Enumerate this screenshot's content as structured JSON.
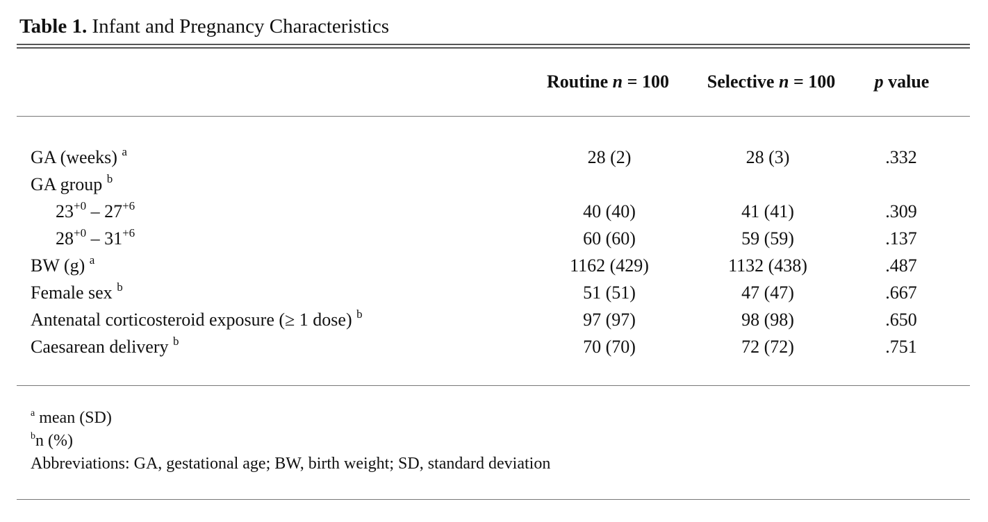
{
  "caption": {
    "label": "Table 1.",
    "title": "Infant and Pregnancy Characteristics"
  },
  "columns": {
    "routine": {
      "name": "Routine",
      "n_symbol": "n",
      "n_value": "= 100"
    },
    "selective": {
      "name": "Selective",
      "n_symbol": "n",
      "n_value": "= 100"
    },
    "p": {
      "symbol": "p",
      "text": "value"
    }
  },
  "rows": [
    {
      "label": "GA (weeks)",
      "note": "a",
      "routine": "28 (2)",
      "selective": "28 (3)",
      "p": ".332"
    },
    {
      "label": "GA group",
      "note": "b",
      "routine": "",
      "selective": "",
      "p": ""
    },
    {
      "label_a": "23",
      "sup_a": "+0",
      "dash": "–",
      "label_b": "27",
      "sup_b": "+6",
      "routine": "40 (40)",
      "selective": "41 (41)",
      "p": ".309"
    },
    {
      "label_a": "28",
      "sup_a": "+0",
      "dash": "–",
      "label_b": "31",
      "sup_b": "+6",
      "routine": "60 (60)",
      "selective": "59 (59)",
      "p": ".137"
    },
    {
      "label": "BW (g)",
      "note": "a",
      "routine": "1162 (429)",
      "selective": "1132 (438)",
      "p": ".487"
    },
    {
      "label": "Female sex",
      "note": "b",
      "routine": "51 (51)",
      "selective": "47 (47)",
      "p": ".667"
    },
    {
      "label": "Antenatal corticosteroid exposure (≥ 1 dose)",
      "note": "b",
      "routine": "97 (97)",
      "selective": "98 (98)",
      "p": ".650"
    },
    {
      "label": "Caesarean delivery",
      "note": "b",
      "routine": "70 (70)",
      "selective": "72 (72)",
      "p": ".751"
    }
  ],
  "footnotes": [
    {
      "mark": "a",
      "text": "mean (SD)"
    },
    {
      "mark": "b",
      "text": "n (%)"
    },
    {
      "mark": "",
      "text": "Abbreviations: GA, gestational age; BW, birth weight; SD, standard deviation"
    }
  ]
}
